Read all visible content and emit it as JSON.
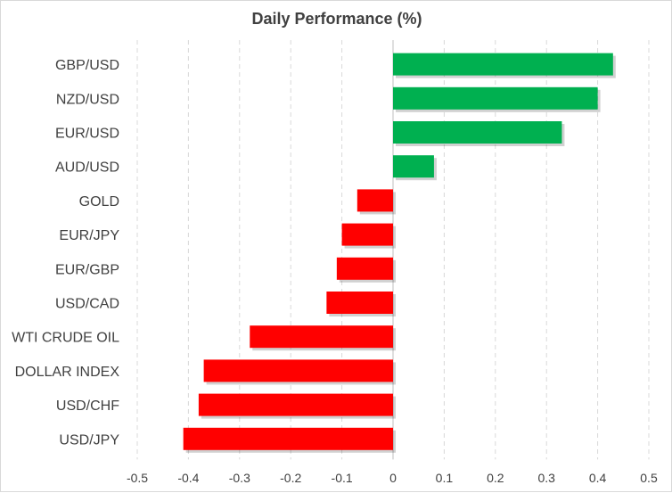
{
  "chart_data": {
    "type": "bar",
    "orientation": "horizontal",
    "title": "Daily Performance (%)",
    "xlabel": "",
    "ylabel": "",
    "xlim": [
      -0.5,
      0.5
    ],
    "xticks": [
      "-0.5",
      "-0.4",
      "-0.3",
      "-0.2",
      "-0.1",
      "0",
      "0.1",
      "0.2",
      "0.3",
      "0.4",
      "0.5"
    ],
    "categories": [
      "GBP/USD",
      "NZD/USD",
      "EUR/USD",
      "AUD/USD",
      "GOLD",
      "EUR/JPY",
      "EUR/GBP",
      "USD/CAD",
      "WTI CRUDE OIL",
      "DOLLAR INDEX",
      "USD/CHF",
      "USD/JPY"
    ],
    "values": [
      0.43,
      0.4,
      0.33,
      0.08,
      -0.07,
      -0.1,
      -0.11,
      -0.13,
      -0.28,
      -0.37,
      -0.38,
      -0.41
    ],
    "grid": true,
    "legend": "none",
    "colors": {
      "positive": "#00b050",
      "negative": "#ff0000"
    }
  }
}
